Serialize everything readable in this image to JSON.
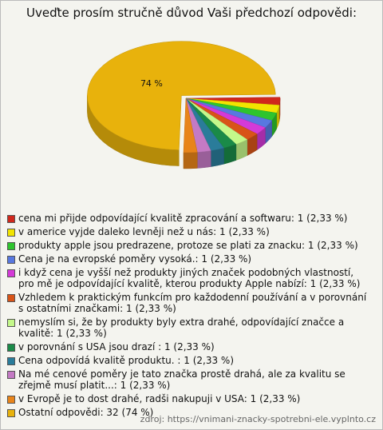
{
  "chart_data": {
    "type": "pie3d",
    "title": "Uveďte prosím stručně důvod Vaši předchozí odpovědi:",
    "categories": [
      "cena mi přijde odpovídající kvalitě zpracování a softwaru: 1 (2,33 %)",
      "v americe vyjde daleko levněji než u nás: 1 (2,33 %)",
      "produkty apple jsou predrazene, protoze se plati za znacku: 1 (2,33 %)",
      "Cena je na evropské poměry vysoká.: 1 (2,33 %)",
      "i když cena je vyšší než produkty jiných značek podobných vlastností, pro mě je odpovídající kvalitě, kterou produkty Apple nabízí: 1 (2,33 %)",
      "Vzhledem k praktickým funkcím pro každodenní používání a v porovnání s ostatními značkami: 1 (2,33 %)",
      "nemyslím si, že by produkty byly extra drahé, odpovídající značce a kvalitě: 1 (2,33 %)",
      "v porovnání s USA jsou drazí : 1 (2,33 %)",
      "Cena odpovídá kvalitě produktu. : 1 (2,33 %)",
      "Na mé cenové poměry je tato značka prostě drahá, ale za kvalitu se zřejmě musí platit...: 1 (2,33 %)",
      "v Evropě je to dost drahé, radši nakupuji v USA: 1 (2,33 %)",
      "Ostatní odpovědi: 32 (74 %)"
    ],
    "values": [
      2.33,
      2.33,
      2.33,
      2.33,
      2.33,
      2.33,
      2.33,
      2.33,
      2.33,
      2.33,
      2.33,
      74
    ],
    "value_labels": [
      null,
      null,
      null,
      null,
      null,
      null,
      null,
      null,
      null,
      null,
      null,
      "74 %"
    ],
    "colors": [
      "#d0281c",
      "#f2e400",
      "#2ec42e",
      "#5878e0",
      "#d43ad8",
      "#d85418",
      "#c4f88a",
      "#1a8a48",
      "#2a7c9a",
      "#c47ac4",
      "#e8841a",
      "#e8b20c"
    ],
    "source": "zdroj: https://vnimani-znacky-spotrebni-ele.vyplnto.cz"
  }
}
